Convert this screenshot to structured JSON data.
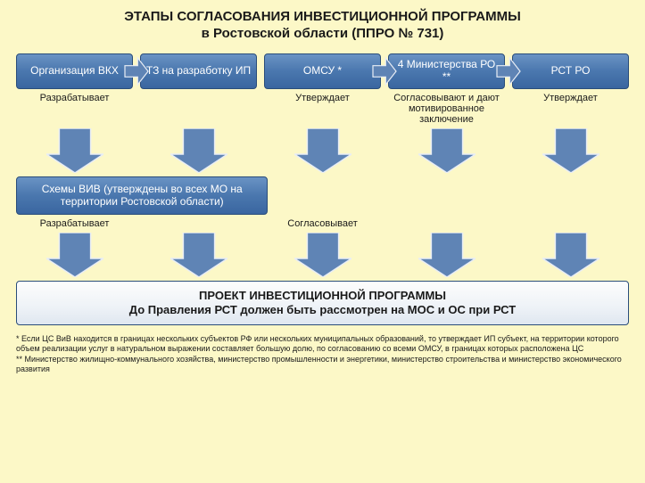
{
  "colors": {
    "page_bg": "#fcf8c7",
    "box_grad_top": "#6a93c4",
    "box_grad_mid": "#4a77ae",
    "box_grad_bot": "#3a66a0",
    "box_border": "#2a4d7a",
    "arrow_fill": "#5f84b5",
    "arrow_stroke": "#e8edf5",
    "bottom_grad_top": "#fdfdfd",
    "bottom_grad_bot": "#dfe7f0",
    "text_dark": "#1a1a1a"
  },
  "layout": {
    "title_fontsize": 15,
    "box_fontsize": 12,
    "label_fontsize": 11,
    "footnote_fontsize": 9,
    "bottom_fontsize": 13,
    "row1_box_height": 40,
    "arrow_w": 64,
    "arrow_h": 50,
    "harrow_w": 26,
    "harrow_h": 30
  },
  "title": {
    "line1": "ЭТАПЫ СОГЛАСОВАНИЯ ИНВЕСТИЦИОННОЙ ПРОГРАММЫ",
    "line2": "в Ростовской области (ППРО № 731)"
  },
  "row1": {
    "boxes": [
      "Организация ВКХ",
      "ТЗ на разработку ИП",
      "ОМСУ *",
      "4 Министерства РО **",
      "РСТ РО"
    ],
    "labels": [
      "Разрабатывает",
      "",
      "Утверждает",
      "Согласовывают и дают мотивированное заключение",
      "Утверждает"
    ],
    "harrows_after_index": [
      0,
      2,
      3
    ]
  },
  "row2": {
    "wide_box": "Схемы ВИВ (утверждены во всех МО на территории Ростовской области)",
    "labels": [
      "Разрабатывает",
      "",
      "Согласовывает",
      "",
      ""
    ]
  },
  "bottom": {
    "line1": "ПРОЕКТ ИНВЕСТИЦИОННОЙ ПРОГРАММЫ",
    "line2": "До Правления РСТ должен быть рассмотрен на МОС и ОС при РСТ"
  },
  "footnotes": {
    "f1": "* Если ЦС ВиВ находится в границах нескольких субъектов РФ или нескольких муниципальных образований, то утверждает ИП субъект, на территории которого объем реализации услуг в натуральном выражении составляет большую долю, по согласованию со всеми ОМСУ, в границах которых расположена ЦС",
    "f2": "** Министерство жилищно-коммунального хозяйства, министерство промышленности и энергетики, министерство строительства и министерство экономического развития"
  }
}
